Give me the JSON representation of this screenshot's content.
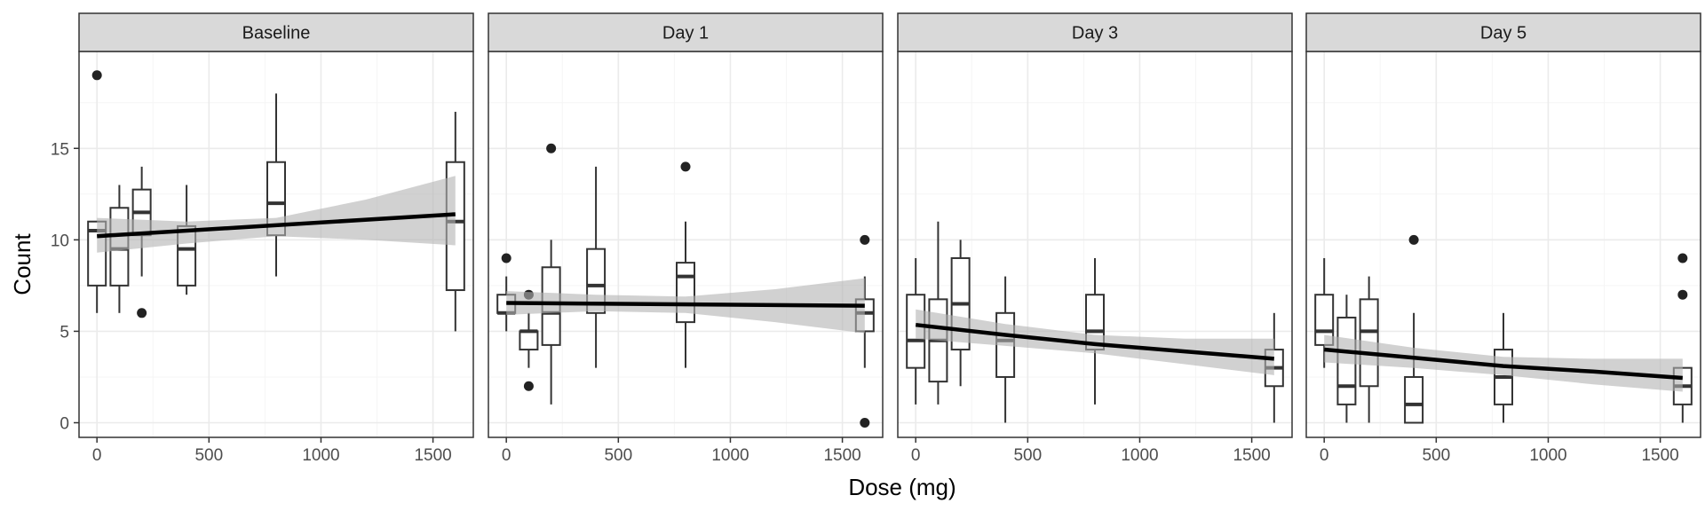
{
  "chart_data": {
    "type": "boxplot",
    "xlabel": "Dose (mg)",
    "ylabel": "Count",
    "xlim": [
      -80,
      1680
    ],
    "ylim": [
      -0.8,
      20.3
    ],
    "x_ticks": [
      0,
      500,
      1000,
      1500
    ],
    "y_ticks": [
      0,
      5,
      10,
      15
    ],
    "grid": true,
    "colors": {
      "strip_bg": "#d9d9d9",
      "panel_border": "#333333",
      "grid_major": "#ebebeb",
      "grid_minor": "#f5f5f5",
      "box_line": "#333333",
      "ribbon": "#b3b3b3",
      "fit_line": "#000000",
      "outlier": "#222222"
    },
    "panels": [
      {
        "label": "Baseline",
        "boxes": [
          {
            "x": 0,
            "ymin": 6,
            "q1": 7.5,
            "median": 10.5,
            "q3": 11,
            "ymax": 11,
            "outliers": [
              19
            ]
          },
          {
            "x": 100,
            "ymin": 6,
            "q1": 7.5,
            "median": 9.5,
            "q3": 11.75,
            "ymax": 13,
            "outliers": []
          },
          {
            "x": 200,
            "ymin": 8,
            "q1": 10.25,
            "median": 11.5,
            "q3": 12.75,
            "ymax": 14,
            "outliers": [
              6
            ]
          },
          {
            "x": 400,
            "ymin": 7,
            "q1": 7.5,
            "median": 9.5,
            "q3": 10.75,
            "ymax": 13,
            "outliers": []
          },
          {
            "x": 800,
            "ymin": 8,
            "q1": 10.25,
            "median": 12,
            "q3": 14.25,
            "ymax": 18,
            "outliers": []
          },
          {
            "x": 1600,
            "ymin": 5,
            "q1": 7.25,
            "median": 11,
            "q3": 14.25,
            "ymax": 17,
            "outliers": []
          }
        ],
        "fit": {
          "x": [
            0,
            1600
          ],
          "y": [
            10.2,
            11.4
          ]
        },
        "ribbon": {
          "x": [
            0,
            400,
            800,
            1200,
            1600
          ],
          "lower": [
            9.3,
            9.8,
            10.2,
            10.0,
            9.7
          ],
          "upper": [
            11.2,
            11.0,
            11.2,
            12.2,
            13.5
          ]
        }
      },
      {
        "label": "Day 1",
        "boxes": [
          {
            "x": 0,
            "ymin": 5,
            "q1": 6,
            "median": 6,
            "q3": 7,
            "ymax": 8,
            "outliers": [
              9
            ]
          },
          {
            "x": 100,
            "ymin": 3,
            "q1": 4,
            "median": 5,
            "q3": 5,
            "ymax": 6,
            "outliers": [
              2,
              7
            ]
          },
          {
            "x": 200,
            "ymin": 1,
            "q1": 4.25,
            "median": 6,
            "q3": 8.5,
            "ymax": 10,
            "outliers": [
              15
            ]
          },
          {
            "x": 400,
            "ymin": 3,
            "q1": 6,
            "median": 7.5,
            "q3": 9.5,
            "ymax": 14,
            "outliers": []
          },
          {
            "x": 800,
            "ymin": 3,
            "q1": 5.5,
            "median": 8,
            "q3": 8.75,
            "ymax": 11,
            "outliers": [
              14
            ]
          },
          {
            "x": 1600,
            "ymin": 3,
            "q1": 5,
            "median": 6,
            "q3": 6.75,
            "ymax": 8,
            "outliers": [
              10,
              0
            ]
          }
        ],
        "fit": {
          "x": [
            0,
            1600
          ],
          "y": [
            6.55,
            6.4
          ]
        },
        "ribbon": {
          "x": [
            0,
            400,
            800,
            1200,
            1600
          ],
          "lower": [
            5.9,
            6.1,
            6.0,
            5.5,
            4.9
          ],
          "upper": [
            7.2,
            7.0,
            6.9,
            7.3,
            7.9
          ]
        }
      },
      {
        "label": "Day 3",
        "boxes": [
          {
            "x": 0,
            "ymin": 1,
            "q1": 3,
            "median": 4.5,
            "q3": 7,
            "ymax": 9,
            "outliers": []
          },
          {
            "x": 100,
            "ymin": 1,
            "q1": 2.25,
            "median": 4.5,
            "q3": 6.75,
            "ymax": 11,
            "outliers": []
          },
          {
            "x": 200,
            "ymin": 2,
            "q1": 4,
            "median": 6.5,
            "q3": 9,
            "ymax": 10,
            "outliers": []
          },
          {
            "x": 400,
            "ymin": 0,
            "q1": 2.5,
            "median": 4.5,
            "q3": 6,
            "ymax": 8,
            "outliers": []
          },
          {
            "x": 800,
            "ymin": 1,
            "q1": 4,
            "median": 5,
            "q3": 7,
            "ymax": 9,
            "outliers": []
          },
          {
            "x": 1600,
            "ymin": 0,
            "q1": 2,
            "median": 3,
            "q3": 4,
            "ymax": 6,
            "outliers": []
          }
        ],
        "fit": {
          "x": [
            0,
            400,
            800,
            1200,
            1600
          ],
          "y": [
            5.35,
            4.8,
            4.3,
            3.9,
            3.5
          ]
        },
        "ribbon": {
          "x": [
            0,
            400,
            800,
            1200,
            1600
          ],
          "lower": [
            4.6,
            4.2,
            3.8,
            3.2,
            2.6
          ],
          "upper": [
            6.2,
            5.4,
            4.8,
            4.6,
            4.6
          ]
        }
      },
      {
        "label": "Day 5",
        "boxes": [
          {
            "x": 0,
            "ymin": 3,
            "q1": 4.25,
            "median": 5,
            "q3": 7,
            "ymax": 9,
            "outliers": []
          },
          {
            "x": 100,
            "ymin": 0,
            "q1": 1,
            "median": 2,
            "q3": 5.75,
            "ymax": 7,
            "outliers": []
          },
          {
            "x": 200,
            "ymin": 0,
            "q1": 2,
            "median": 5,
            "q3": 6.75,
            "ymax": 8,
            "outliers": []
          },
          {
            "x": 400,
            "ymin": 0,
            "q1": 0,
            "median": 1,
            "q3": 2.5,
            "ymax": 6,
            "outliers": [
              10
            ]
          },
          {
            "x": 800,
            "ymin": 0,
            "q1": 1,
            "median": 2.5,
            "q3": 4,
            "ymax": 6,
            "outliers": []
          },
          {
            "x": 1600,
            "ymin": 0,
            "q1": 1,
            "median": 2,
            "q3": 3,
            "ymax": 3,
            "outliers": [
              9,
              7
            ]
          }
        ],
        "fit": {
          "x": [
            0,
            400,
            800,
            1200,
            1600
          ],
          "y": [
            4.0,
            3.55,
            3.1,
            2.8,
            2.45
          ]
        },
        "ribbon": {
          "x": [
            0,
            400,
            800,
            1200,
            1600
          ],
          "lower": [
            3.3,
            3.0,
            2.6,
            2.1,
            1.7
          ],
          "upper": [
            4.8,
            4.1,
            3.6,
            3.5,
            3.5
          ]
        }
      }
    ]
  }
}
